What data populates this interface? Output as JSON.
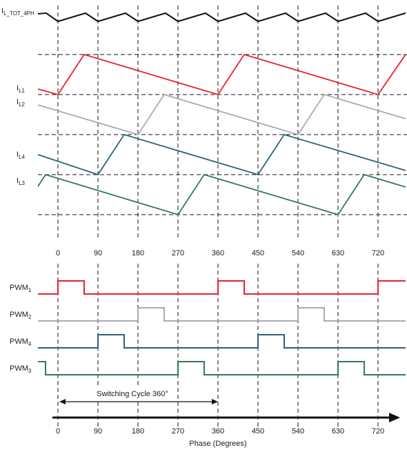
{
  "signals": {
    "total_label": "I",
    "total_sub": "L_TOT_4PH",
    "il1": {
      "main": "I",
      "sub": "L1"
    },
    "il2": {
      "main": "I",
      "sub": "L2"
    },
    "il4": {
      "main": "I",
      "sub": "L4"
    },
    "il3": {
      "main": "I",
      "sub": "L3"
    },
    "pwm1": {
      "main": "PWM",
      "sub": "1"
    },
    "pwm2": {
      "main": "PWM",
      "sub": "2"
    },
    "pwm4": {
      "main": "PWM",
      "sub": "4"
    },
    "pwm3": {
      "main": "PWM",
      "sub": "3"
    }
  },
  "phase_ticks": [
    "0",
    "90",
    "180",
    "270",
    "360",
    "450",
    "540",
    "630",
    "720"
  ],
  "phase_values": [
    0,
    90,
    180,
    270,
    360,
    450,
    540,
    630,
    720
  ],
  "switching_cycle_label": "Switching Cycle 360°",
  "axis_title": "Phase (Degrees)",
  "colors": {
    "il1": "#e8202a",
    "il2": "#aaaaaa",
    "il4": "#2e607a",
    "il3": "#2f7a4f",
    "total": "#111111",
    "grid": "#111111"
  }
}
